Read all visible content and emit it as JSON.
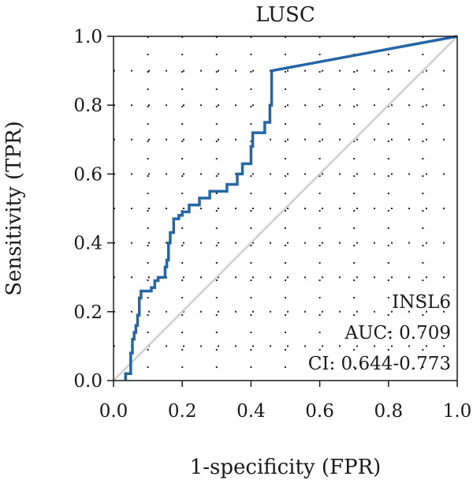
{
  "chart_data": {
    "type": "line",
    "title": "LUSC",
    "xlabel": "1-specificity (FPR)",
    "ylabel": "Sensitivity (TPR)",
    "xlim": [
      0,
      1
    ],
    "ylim": [
      0,
      1
    ],
    "xticks": [
      "0.0",
      "0.2",
      "0.4",
      "0.6",
      "0.8",
      "1.0"
    ],
    "yticks": [
      "0.0",
      "0.2",
      "0.4",
      "0.6",
      "0.8",
      "1.0"
    ],
    "grid": true,
    "series": [
      {
        "name": "INSL6",
        "color": "#2566a4",
        "points": [
          [
            0.035,
            0.0
          ],
          [
            0.035,
            0.02
          ],
          [
            0.05,
            0.02
          ],
          [
            0.05,
            0.08
          ],
          [
            0.055,
            0.08
          ],
          [
            0.055,
            0.12
          ],
          [
            0.06,
            0.12
          ],
          [
            0.06,
            0.14
          ],
          [
            0.065,
            0.14
          ],
          [
            0.065,
            0.16
          ],
          [
            0.07,
            0.16
          ],
          [
            0.07,
            0.19
          ],
          [
            0.075,
            0.19
          ],
          [
            0.075,
            0.24
          ],
          [
            0.08,
            0.24
          ],
          [
            0.08,
            0.26
          ],
          [
            0.11,
            0.26
          ],
          [
            0.11,
            0.27
          ],
          [
            0.12,
            0.27
          ],
          [
            0.12,
            0.29
          ],
          [
            0.13,
            0.29
          ],
          [
            0.13,
            0.3
          ],
          [
            0.15,
            0.3
          ],
          [
            0.15,
            0.33
          ],
          [
            0.155,
            0.33
          ],
          [
            0.155,
            0.35
          ],
          [
            0.16,
            0.35
          ],
          [
            0.16,
            0.4
          ],
          [
            0.165,
            0.4
          ],
          [
            0.165,
            0.43
          ],
          [
            0.175,
            0.43
          ],
          [
            0.175,
            0.47
          ],
          [
            0.19,
            0.47
          ],
          [
            0.19,
            0.48
          ],
          [
            0.2,
            0.48
          ],
          [
            0.2,
            0.49
          ],
          [
            0.22,
            0.49
          ],
          [
            0.22,
            0.51
          ],
          [
            0.25,
            0.51
          ],
          [
            0.25,
            0.53
          ],
          [
            0.28,
            0.53
          ],
          [
            0.28,
            0.55
          ],
          [
            0.33,
            0.55
          ],
          [
            0.33,
            0.57
          ],
          [
            0.36,
            0.57
          ],
          [
            0.36,
            0.6
          ],
          [
            0.375,
            0.6
          ],
          [
            0.375,
            0.63
          ],
          [
            0.4,
            0.63
          ],
          [
            0.4,
            0.68
          ],
          [
            0.405,
            0.68
          ],
          [
            0.405,
            0.72
          ],
          [
            0.44,
            0.72
          ],
          [
            0.44,
            0.75
          ],
          [
            0.455,
            0.75
          ],
          [
            0.455,
            0.8
          ],
          [
            0.46,
            0.8
          ],
          [
            0.46,
            0.9
          ],
          [
            1.0,
            1.0
          ]
        ]
      },
      {
        "name": "",
        "color": "#cfcfcf",
        "points": [
          [
            0,
            0
          ],
          [
            1,
            1
          ]
        ]
      }
    ],
    "annotations": {
      "marker": "INSL6",
      "auc": "AUC: 0.709",
      "ci": "CI: 0.644-0.773"
    }
  }
}
